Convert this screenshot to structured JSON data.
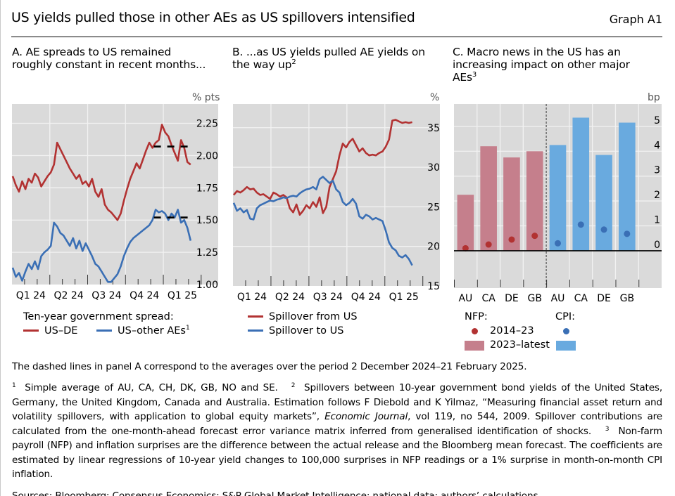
{
  "header": {
    "title": "US yields pulled those in other AEs as US spillovers intensified",
    "graph_id": "Graph A1"
  },
  "colors": {
    "red": "#b23232",
    "blue": "#3a6fb5",
    "bar_red": "#c57f8c",
    "bar_blue": "#69aadf",
    "dot_red": "#b23232",
    "dot_blue": "#3a6fb5",
    "plot_bg": "#dadada",
    "grid": "#f2f2f2"
  },
  "panels": {
    "a": {
      "title_line1": "A. AE spreads to US remained",
      "title_line2": "roughly constant in recent months...",
      "unit": "% pts",
      "legend_heading": "Ten-year government spread:",
      "legend_1": "US–DE",
      "legend_2": "US–other AEs",
      "legend_2_sup": "1"
    },
    "b": {
      "title_line1": "B. ...as US yields pulled AE yields on",
      "title_line2": "the way up",
      "title_sup": "2",
      "unit": "%",
      "legend_1": "Spillover from US",
      "legend_2": "Spillover to US"
    },
    "c": {
      "title_line1": "C. Macro news in the US has an",
      "title_line2": "increasing impact on other major",
      "title_line3": "AEs",
      "title_sup": "3",
      "unit": "bp",
      "legend_nfp": "NFP:",
      "legend_cpi": "CPI:",
      "legend_dot": "2014–23",
      "legend_bar": "2023–latest"
    }
  },
  "chart_data": [
    {
      "type": "line",
      "panel": "A",
      "title": "A. AE spreads to US remained roughly constant in recent months...",
      "ylabel": "% pts",
      "ylim": [
        1.0,
        2.4
      ],
      "yticks": [
        "1.00",
        "1.25",
        "1.50",
        "1.75",
        "2.00",
        "2.25"
      ],
      "ytick_values": [
        1.0,
        1.25,
        1.5,
        1.75,
        2.0,
        2.25
      ],
      "x_period": [
        "2024-01",
        "2025-02"
      ],
      "categories": [
        "Q1 24",
        "Q2 24",
        "Q3 24",
        "Q4 24",
        "Q1 25"
      ],
      "grid": true,
      "legend": "bottom",
      "series": [
        {
          "name": "US–DE",
          "color": "red",
          "values": [
            1.84,
            1.77,
            1.72,
            1.8,
            1.74,
            1.82,
            1.79,
            1.86,
            1.83,
            1.76,
            1.8,
            1.84,
            1.87,
            1.93,
            2.1,
            2.05,
            2.0,
            1.95,
            1.9,
            1.86,
            1.82,
            1.85,
            1.78,
            1.8,
            1.76,
            1.82,
            1.72,
            1.68,
            1.74,
            1.62,
            1.58,
            1.56,
            1.53,
            1.5,
            1.55,
            1.65,
            1.74,
            1.82,
            1.88,
            1.94,
            1.9,
            1.97,
            2.04,
            2.1,
            2.06,
            2.1,
            2.12,
            2.24,
            2.18,
            2.15,
            2.08,
            2.02,
            1.96,
            2.12,
            2.06,
            1.95,
            1.93
          ]
        },
        {
          "name": "US–other AEs",
          "color": "blue",
          "values": [
            1.13,
            1.06,
            1.09,
            1.03,
            1.1,
            1.16,
            1.12,
            1.18,
            1.12,
            1.22,
            1.25,
            1.27,
            1.3,
            1.48,
            1.45,
            1.4,
            1.38,
            1.34,
            1.3,
            1.36,
            1.28,
            1.34,
            1.26,
            1.32,
            1.27,
            1.22,
            1.16,
            1.14,
            1.1,
            1.06,
            1.02,
            1.02,
            1.05,
            1.08,
            1.14,
            1.22,
            1.28,
            1.33,
            1.36,
            1.38,
            1.4,
            1.42,
            1.44,
            1.46,
            1.5,
            1.58,
            1.56,
            1.57,
            1.55,
            1.5,
            1.55,
            1.52,
            1.58,
            1.48,
            1.5,
            1.44,
            1.34
          ]
        }
      ],
      "reference_lines": [
        {
          "name": "US–DE average 2 Dec 2024–21 Feb 2025",
          "value": 2.07
        },
        {
          "name": "US–other AEs average 2 Dec 2024–21 Feb 2025",
          "value": 1.52
        }
      ]
    },
    {
      "type": "line",
      "panel": "B",
      "title": "B. ...as US yields pulled AE yields on the way up",
      "ylabel": "%",
      "ylim": [
        15,
        38
      ],
      "yticks": [
        "15",
        "20",
        "25",
        "30",
        "35"
      ],
      "ytick_values": [
        15,
        20,
        25,
        30,
        35
      ],
      "x_period": [
        "2024-01",
        "2025-02"
      ],
      "categories": [
        "Q1 24",
        "Q2 24",
        "Q3 24",
        "Q4 24",
        "Q1 25"
      ],
      "grid": true,
      "legend": "bottom",
      "series": [
        {
          "name": "Spillover from US",
          "color": "red",
          "values": [
            26.5,
            27.0,
            26.8,
            27.1,
            27.5,
            27.2,
            27.3,
            26.8,
            26.5,
            26.6,
            26.3,
            26.0,
            26.8,
            26.6,
            26.3,
            26.5,
            26.2,
            24.8,
            24.3,
            25.3,
            24.0,
            24.5,
            25.2,
            24.8,
            25.6,
            25.0,
            26.2,
            24.2,
            25.0,
            27.5,
            28.5,
            29.5,
            31.5,
            33.0,
            32.5,
            33.2,
            33.6,
            32.8,
            32.0,
            32.4,
            31.8,
            31.5,
            31.6,
            31.5,
            31.8,
            32.0,
            32.6,
            33.5,
            35.9,
            36.0,
            35.8,
            35.6,
            35.7,
            35.6,
            35.7
          ]
        },
        {
          "name": "Spillover to US",
          "color": "blue",
          "values": [
            25.5,
            24.5,
            24.8,
            24.3,
            24.6,
            23.5,
            23.4,
            24.8,
            25.2,
            25.4,
            25.6,
            25.8,
            25.7,
            25.9,
            26.0,
            26.2,
            26.1,
            26.3,
            26.4,
            26.3,
            26.7,
            27.0,
            27.2,
            27.3,
            27.5,
            27.2,
            28.5,
            28.8,
            28.4,
            28.0,
            28.3,
            27.2,
            26.8,
            25.6,
            25.2,
            25.5,
            26.0,
            25.4,
            23.8,
            23.5,
            24.0,
            23.8,
            23.4,
            23.6,
            23.4,
            23.2,
            22.0,
            20.5,
            19.8,
            19.5,
            18.8,
            18.6,
            18.9,
            18.4,
            17.6
          ]
        }
      ]
    },
    {
      "type": "bar",
      "panel": "C",
      "title": "C. Macro news in the US has an increasing impact on other major AEs",
      "ylabel": "bp",
      "ylim": [
        -1.5,
        5.9
      ],
      "yticks": [
        "0",
        "1",
        "2",
        "3",
        "4",
        "5"
      ],
      "ytick_values": [
        0,
        1,
        2,
        3,
        4,
        5
      ],
      "groups": [
        {
          "name": "NFP",
          "categories": [
            "AU",
            "CA",
            "DE",
            "GB"
          ]
        },
        {
          "name": "CPI",
          "categories": [
            "AU",
            "CA",
            "DE",
            "GB"
          ]
        }
      ],
      "categories": [
        "AU",
        "CA",
        "DE",
        "GB",
        "AU",
        "CA",
        "DE",
        "GB"
      ],
      "grid": true,
      "legend": "bottom",
      "series": [
        {
          "name": "NFP 2023–latest",
          "type": "bar",
          "color": "bar_red",
          "values": [
            2.25,
            4.2,
            3.75,
            4.0,
            null,
            null,
            null,
            null
          ]
        },
        {
          "name": "NFP 2014–23",
          "type": "dot",
          "color": "dot_red",
          "values": [
            0.1,
            0.25,
            0.45,
            0.6,
            null,
            null,
            null,
            null
          ]
        },
        {
          "name": "CPI 2023–latest",
          "type": "bar",
          "color": "bar_blue",
          "values": [
            null,
            null,
            null,
            null,
            4.25,
            5.35,
            3.85,
            5.15
          ]
        },
        {
          "name": "CPI 2014–23",
          "type": "dot",
          "color": "dot_blue",
          "values": [
            null,
            null,
            null,
            null,
            0.3,
            1.05,
            0.85,
            0.68
          ]
        }
      ]
    }
  ],
  "notes": {
    "dashed": "The dashed lines in panel A correspond to the averages over the period 2 December 2024–21 February 2025.",
    "fn1_sup": "1",
    "fn1": "Simple average of AU, CA, CH, DK, GB, NO and SE.",
    "fn2_sup": "2",
    "fn2_a": "Spillovers between 10-year government bond yields of the United States, Germany, the United Kingdom, Canada and Australia. Estimation follows F Diebold and K Yilmaz, “Measuring financial asset return and volatility spillovers, with application to global equity markets”,",
    "fn2_journal": "Economic Journal",
    "fn2_b": ", vol 119, no 544, 2009. Spillover contributions are calculated from the one-month-ahead forecast error variance matrix inferred from generalised identification of shocks.",
    "fn3_sup": "3",
    "fn3": "Non-farm payroll (NFP) and inflation surprises are the difference between the actual release and the Bloomberg mean forecast. The coefficients are estimated by linear regressions of 10-year yield changes to 100,000 surprises in NFP readings or a 1% surprise in month-on-month CPI inflation.",
    "sources": "Sources: Bloomberg; Consensus Economics; S&P Global Market Intelligence; national data; authors’ calculations."
  }
}
